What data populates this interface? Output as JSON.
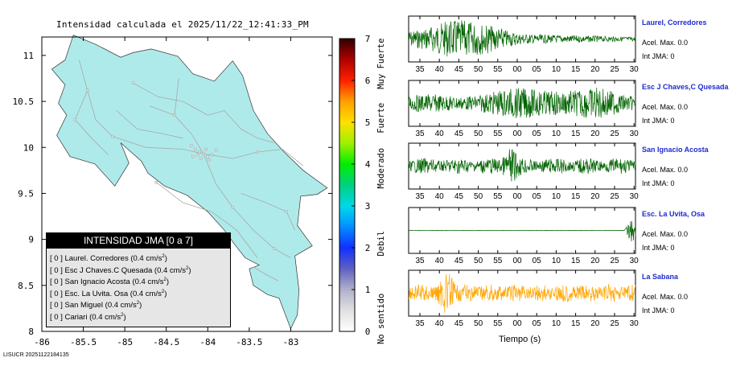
{
  "map": {
    "title": "Intensidad calculada el 2025/11/22_12:41:33_PM",
    "x_ticks": [
      "-86",
      "-85.5",
      "-85",
      "-84.5",
      "-84",
      "-83.5",
      "-83"
    ],
    "y_ticks": [
      "11",
      "10.5",
      "10",
      "9.5",
      "9",
      "8.5",
      "8"
    ],
    "fill_color": "#afeaea"
  },
  "colorbar": {
    "ticks": [
      "0",
      "1",
      "2",
      "3",
      "4",
      "5",
      "6",
      "7"
    ],
    "labels": [
      "No sentido",
      "Debil",
      "Moderado",
      "Fuerte",
      "Muy Fuerte"
    ]
  },
  "legend": {
    "header": "INTENSIDAD JMA [0 a 7]",
    "rows": [
      {
        "value": "[ 0 ]",
        "station": "Laurel. Corredores",
        "measure": "(0.4 cm/s",
        "exp": "2",
        "close": ")"
      },
      {
        "value": "[ 0 ]",
        "station": "Esc J Chaves.C Quesada",
        "measure": "(0.4 cm/s",
        "exp": "2",
        "close": ")"
      },
      {
        "value": "[ 0 ]",
        "station": "San Ignacio Acosta",
        "measure": "(0.4 cm/s",
        "exp": "2",
        "close": ")"
      },
      {
        "value": "[ 0 ]",
        "station": "Esc. La Uvita. Osa",
        "measure": "(0.4 cm/s",
        "exp": "2",
        "close": ")"
      },
      {
        "value": "[ 0 ]",
        "station": "San Miguel",
        "measure": "(0.4 cm/s",
        "exp": "2",
        "close": ")"
      },
      {
        "value": "[ 0 ]",
        "station": "Cariari",
        "measure": "(0.4 cm/s",
        "exp": "2",
        "close": ")"
      }
    ]
  },
  "footer_id": "LISUCR 20251122184135",
  "waveforms": {
    "x_ticks": [
      "35",
      "40",
      "45",
      "50",
      "55",
      "00",
      "05",
      "10",
      "15",
      "20",
      "25",
      "30"
    ],
    "xlabel": "Tiempo (s)",
    "stations": [
      {
        "name": "Laurel, Corredores",
        "acel": "Acel. Max. 0.0",
        "jma": "Int JMA: 0",
        "color": "#006400"
      },
      {
        "name": "Esc J Chaves,C Quesada",
        "acel": "Acel. Max. 0.0",
        "jma": "Int JMA: 0",
        "color": "#006400"
      },
      {
        "name": "San Ignacio Acosta",
        "acel": "Acel. Max. 0.0",
        "jma": "Int JMA: 0",
        "color": "#006400"
      },
      {
        "name": "Esc. La Uvita, Osa",
        "acel": "Acel. Max. 0.0",
        "jma": "Int JMA: 0",
        "color": "#006400"
      },
      {
        "name": "La Sabana",
        "acel": "Acel. Max. 0.0",
        "jma": "Int JMA: 0",
        "color": "#ffa500"
      }
    ]
  },
  "chart_data": [
    {
      "type": "heatmap",
      "title": "Intensidad calculada el 2025/11/22_12:41:33_PM",
      "xlabel": "",
      "ylabel": "",
      "xlim": [
        -86,
        -82.5
      ],
      "ylim": [
        8,
        11.2
      ],
      "colorbar_range": [
        0,
        7
      ],
      "colorbar_labels": [
        "No sentido",
        "Debil",
        "Moderado",
        "Fuerte",
        "Muy Fuerte"
      ],
      "stations": [
        {
          "name": "Laurel. Corredores",
          "intensity": 0,
          "acceleration": 0.4
        },
        {
          "name": "Esc J Chaves.C Quesada",
          "intensity": 0,
          "acceleration": 0.4
        },
        {
          "name": "San Ignacio Acosta",
          "intensity": 0,
          "acceleration": 0.4
        },
        {
          "name": "Esc. La Uvita. Osa",
          "intensity": 0,
          "acceleration": 0.4
        },
        {
          "name": "San Miguel",
          "intensity": 0,
          "acceleration": 0.4
        },
        {
          "name": "Cariari",
          "intensity": 0,
          "acceleration": 0.4
        }
      ]
    },
    {
      "type": "line",
      "xlabel": "Tiempo (s)",
      "x_ticks": [
        "35",
        "40",
        "45",
        "50",
        "55",
        "00",
        "05",
        "10",
        "15",
        "20",
        "25",
        "30"
      ],
      "series": [
        {
          "name": "Laurel, Corredores",
          "max_acceleration": 0.0,
          "jma": 0
        },
        {
          "name": "Esc J Chaves,C Quesada",
          "max_acceleration": 0.0,
          "jma": 0
        },
        {
          "name": "San Ignacio Acosta",
          "max_acceleration": 0.0,
          "jma": 0
        },
        {
          "name": "Esc. La Uvita, Osa",
          "max_acceleration": 0.0,
          "jma": 0
        },
        {
          "name": "La Sabana",
          "max_acceleration": 0.0,
          "jma": 0
        }
      ]
    }
  ]
}
